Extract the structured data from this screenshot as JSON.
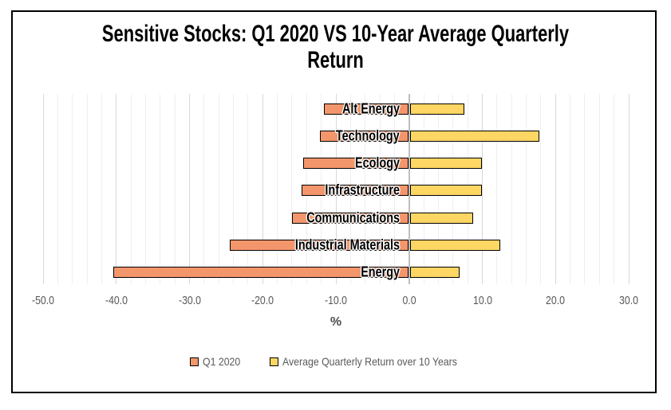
{
  "title": {
    "line1": "Sensitive Stocks: Q1 2020 VS 10-Year Average Quarterly",
    "line2": "Return"
  },
  "chart_data": {
    "type": "bar",
    "orientation": "horizontal",
    "title": "Sensitive Stocks: Q1 2020 VS 10-Year Average Quarterly Return",
    "categories": [
      "Alt Energy",
      "Technology",
      "Ecology",
      "Infrastructure",
      "Communications",
      "Industrial Materials",
      "Energy"
    ],
    "series": [
      {
        "name": "Q1 2020",
        "color": "#F4966B",
        "values": [
          -11.6,
          -12.2,
          -14.5,
          -14.7,
          -16.0,
          -24.5,
          -40.4
        ]
      },
      {
        "name": "Average Quarterly Return over 10 Years",
        "color": "#FDD663",
        "values": [
          7.6,
          17.8,
          9.9,
          9.9,
          8.7,
          12.5,
          6.9
        ]
      }
    ],
    "xlabel": "%",
    "x_ticks": [
      -50,
      -40,
      -30,
      -20,
      -10,
      0,
      10,
      20,
      30
    ],
    "x_tick_labels": [
      "-50.0",
      "-40.0",
      "-30.0",
      "-20.0",
      "-10.0",
      "0.0",
      "10.0",
      "20.0",
      "30.0"
    ],
    "xlim": [
      -50,
      30
    ],
    "minor_unit": 2,
    "major_unit": 10,
    "grid": true,
    "legend_position": "bottom",
    "colors": {
      "grid_minor": "#EFEFEF",
      "grid_major": "#D8D8D8",
      "zero_line": "#BFBFBF",
      "axis_text": "#595959",
      "bar_border": "#000000",
      "frame_border": "#000000",
      "background": "#FFFFFF"
    }
  }
}
